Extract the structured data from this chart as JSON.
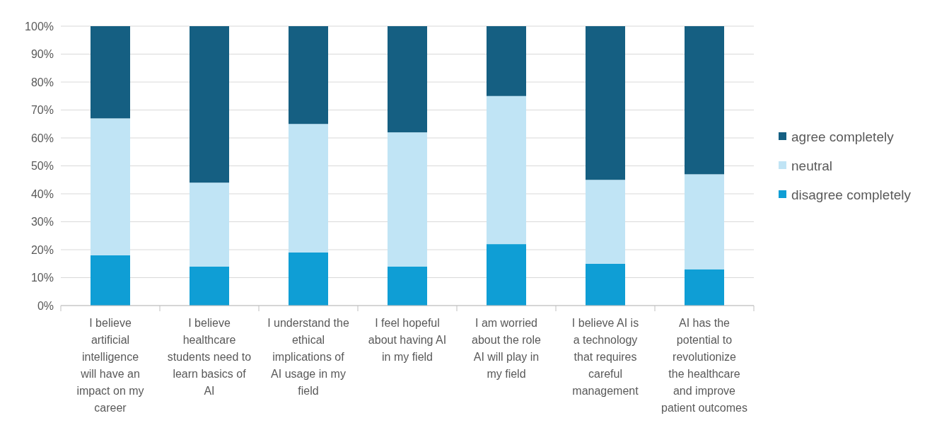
{
  "chart_data": {
    "type": "bar",
    "stacked": true,
    "categories": [
      "I believe artificial intelligence will have an impact on my career",
      "I believe healthcare students need to learn basics of AI",
      "I understand the ethical implications of AI usage in my field",
      "I feel hopeful about having AI in my field",
      "I am worried about the role AI will play in my field",
      "I believe AI is a technology that requires careful management",
      "AI has the potential to revolutionize the healthcare and improve patient outcomes"
    ],
    "series": [
      {
        "name": "disagree completely",
        "color": "#0f9ed5",
        "values": [
          18,
          14,
          19,
          14,
          22,
          15,
          13
        ]
      },
      {
        "name": "neutral",
        "color": "#c0e4f5",
        "values": [
          49,
          30,
          46,
          48,
          53,
          30,
          34
        ]
      },
      {
        "name": "agree completely",
        "color": "#155f82",
        "values": [
          33,
          56,
          35,
          38,
          25,
          55,
          53
        ]
      }
    ],
    "ylim": [
      0,
      100
    ],
    "yticks": [
      {
        "value": 0,
        "label": "0%"
      },
      {
        "value": 10,
        "label": "10%"
      },
      {
        "value": 20,
        "label": "20%"
      },
      {
        "value": 30,
        "label": "30%"
      },
      {
        "value": 40,
        "label": "40%"
      },
      {
        "value": 50,
        "label": "50%"
      },
      {
        "value": 60,
        "label": "60%"
      },
      {
        "value": 70,
        "label": "70%"
      },
      {
        "value": 80,
        "label": "80%"
      },
      {
        "value": 90,
        "label": "90%"
      },
      {
        "value": 100,
        "label": "100%"
      }
    ],
    "grid": "y",
    "legend": "right"
  }
}
